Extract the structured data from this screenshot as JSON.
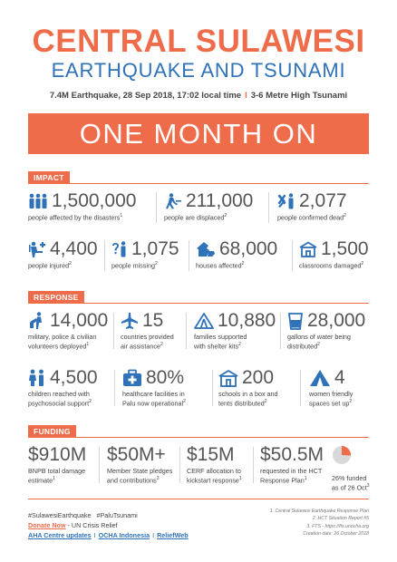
{
  "header": {
    "title_line1": "CENTRAL SULAWESI",
    "title_line2": "EARTHQUAKE AND TSUNAMI",
    "subtitle_left": "7.4M Earthquake, 28 Sep 2018, 17:02 local time",
    "subtitle_sep": "I",
    "subtitle_right": "3-6 Metre High Tsunami",
    "banner": "ONE MONTH ON"
  },
  "impact": {
    "tag": "IMPACT",
    "stats": [
      {
        "value": "1,500,000",
        "label": "people affected by the disasters",
        "ref": "1",
        "icon": "people-group-icon"
      },
      {
        "value": "211,000",
        "label": "people are displaced",
        "ref": "2",
        "icon": "person-walking-icon"
      },
      {
        "value": "2,077",
        "label": "people confirmed dead",
        "ref": "2",
        "icon": "person-dead-icon"
      },
      {
        "value": "4,400",
        "label": "people injured",
        "ref": "2",
        "icon": "person-injured-icon"
      },
      {
        "value": "1,075",
        "label": "people missing",
        "ref": "2",
        "icon": "person-missing-icon"
      },
      {
        "value": "68,000",
        "label": "houses affected",
        "ref": "2",
        "icon": "house-damaged-icon"
      },
      {
        "value": "1,500",
        "label": "classrooms damaged",
        "ref": "2",
        "icon": "school-icon"
      }
    ]
  },
  "response": {
    "tag": "RESPONSE",
    "stats": [
      {
        "value": "14,000",
        "label_line1": "military, police & civilian",
        "label_line2": "volunteers deployed",
        "ref": "1",
        "icon": "volunteer-icon"
      },
      {
        "value": "15",
        "label_line1": "countries provided",
        "label_line2": "air assistance",
        "ref": "2",
        "icon": "airplane-icon"
      },
      {
        "value": "10,880",
        "label_line1": "families supported",
        "label_line2": "with shelter kits",
        "ref": "2",
        "icon": "tent-icon"
      },
      {
        "value": "28,000",
        "label_line1": "gallons of water being",
        "label_line2": "distributed",
        "ref": "2",
        "icon": "water-glass-icon"
      },
      {
        "value": "4,500",
        "label_line1": "children reached with",
        "label_line2": "psychosocial support",
        "ref": "2",
        "icon": "children-icon"
      },
      {
        "value": "80%",
        "label_line1": "healthcare facilities in",
        "label_line2": "Palu now operational",
        "ref": "2",
        "icon": "medical-kit-icon"
      },
      {
        "value": "200",
        "label_line1": "schools in a box and",
        "label_line2": "tents distributed",
        "ref": "2",
        "icon": "school-icon"
      },
      {
        "value": "4",
        "label_line1": "women friendly",
        "label_line2": "spaces set up",
        "ref": "2",
        "icon": "tent-solid-icon"
      }
    ]
  },
  "funding": {
    "tag": "FUNDING",
    "stats": [
      {
        "value": "$910M",
        "label_line1": "BNPB total damage",
        "label_line2": "estimate",
        "ref": "1"
      },
      {
        "value": "$50M+",
        "label_line1": "Member State pledges",
        "label_line2": "and contributions",
        "ref": "3"
      },
      {
        "value": "$15M",
        "label_line1": "CERF allocation to",
        "label_line2": "kickstart response",
        "ref": "1"
      },
      {
        "value": "$50.5M",
        "label_line1": "requested in the HCT",
        "label_line2": "Response Plan",
        "ref": "1"
      }
    ],
    "pie": {
      "funded_percent": 26,
      "label_line1": "26% funded",
      "label_line2": "as of 26 Oct",
      "ref": "3"
    }
  },
  "footer": {
    "hashtags": "#SulawesiEarthquake   #PaluTsunami",
    "donate_link": "Donate Now",
    "donate_rest": " - UN Crisis Relief",
    "links": [
      "AHA Centre updates",
      "OCHA Indonesia",
      "ReliefWeb"
    ],
    "sources": [
      "1. Central Sulawesi Earthquake Response Plan",
      "2. HCT Situation Report #5",
      "3. FTS - https://fts.unocha.org",
      "Creation date: 26 October 2018"
    ]
  },
  "colors": {
    "accent": "#ef6c4a",
    "blue": "#2f72b8",
    "icon": "#2f72b8"
  }
}
